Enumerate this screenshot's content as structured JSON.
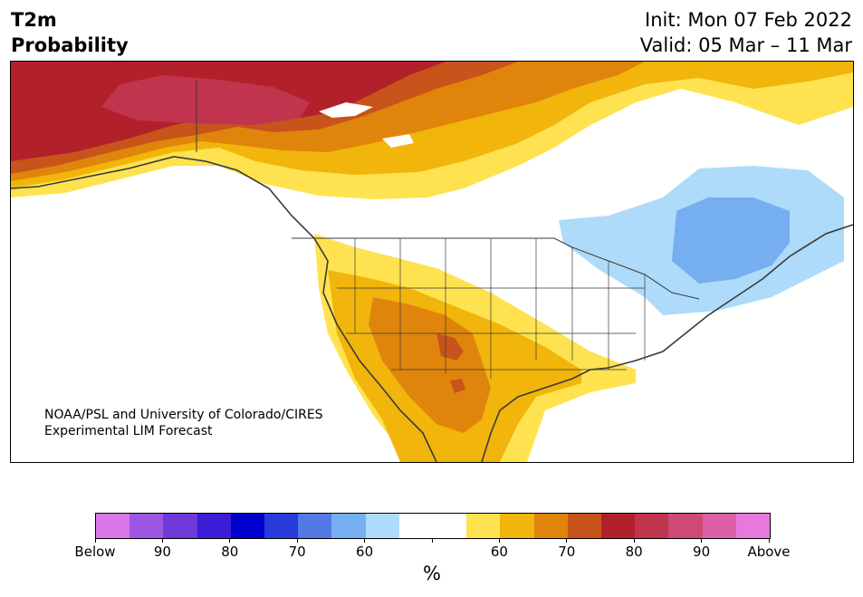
{
  "title": {
    "left_line1": "T2m",
    "left_line2": "Probability",
    "right_line1": "Init: Mon 07 Feb 2022",
    "right_line2": "Valid: 05 Mar – 11 Mar"
  },
  "credit": {
    "line1": "NOAA/PSL and University of Colorado/CIRES",
    "line2": "Experimental LIM Forecast"
  },
  "colorbar": {
    "colors": [
      "#d878ea",
      "#9d56e2",
      "#6f3bd8",
      "#3c1ed6",
      "#0000cd",
      "#2a3bdb",
      "#5279e4",
      "#75aef1",
      "#addbf9",
      "#ffffff",
      "#ffffff",
      "#ffe24f",
      "#f1b50b",
      "#df850c",
      "#c8531b",
      "#b2202a",
      "#c1344e",
      "#ce4a76",
      "#dc60a6",
      "#e879dc"
    ],
    "tick_labels": [
      "Below",
      "90",
      "80",
      "70",
      "60",
      "",
      "60",
      "70",
      "80",
      "90",
      "Above"
    ],
    "unit": "%"
  },
  "map": {
    "region": "North America",
    "category_colors": {
      "above_80": "#c1344e",
      "above_70": "#b2202a",
      "above_65": "#c8531b",
      "above_60": "#df850c",
      "above_55": "#f1b50b",
      "above_50": "#ffe24f",
      "below_50": "#addbf9",
      "below_60": "#75aef1",
      "coast": "#3a3a3a"
    }
  }
}
